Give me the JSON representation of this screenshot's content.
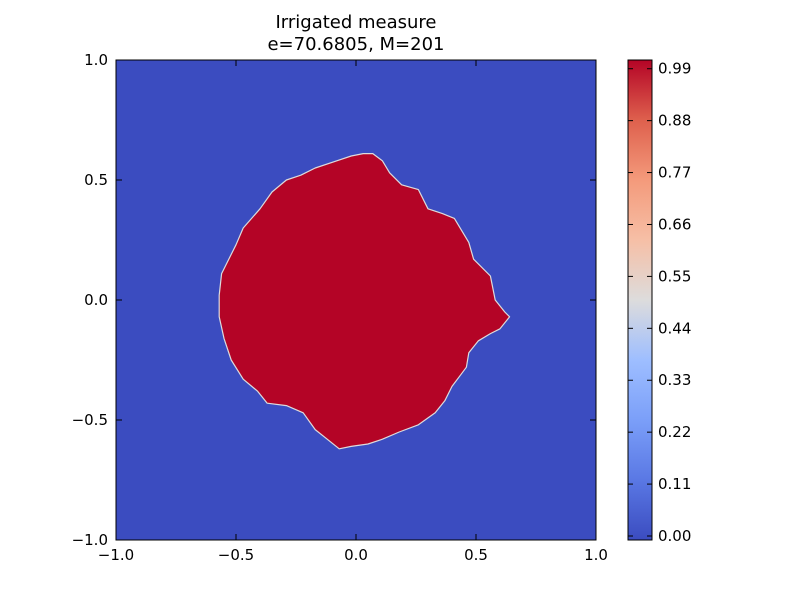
{
  "chart_data": {
    "type": "heatmap",
    "title": "Irrigated measure",
    "subtitle": "e=70.6805, M=201",
    "xlabel": "",
    "ylabel": "",
    "xlim": [
      -1.0,
      1.0
    ],
    "ylim": [
      -1.0,
      1.0
    ],
    "xticks": [
      "−1.0",
      "−0.5",
      "0.0",
      "0.5",
      "1.0"
    ],
    "yticks": [
      "1.0",
      "0.5",
      "0.0",
      "−0.5",
      "−1.0"
    ],
    "colorbar": {
      "ticks": [
        "0.99",
        "0.88",
        "0.77",
        "0.66",
        "0.55",
        "0.44",
        "0.33",
        "0.22",
        "0.11",
        "0.00"
      ],
      "tick_values": [
        0.99,
        0.88,
        0.77,
        0.66,
        0.55,
        0.44,
        0.33,
        0.22,
        0.11,
        0.0
      ],
      "range": [
        0.0,
        1.0
      ],
      "colormap": "coolwarm",
      "low_color": "#3b4cc0",
      "high_color": "#b40426"
    },
    "background_value": 0.0,
    "region": {
      "description_value": 1.0,
      "boundary": [
        [
          0.07,
          0.61
        ],
        [
          0.11,
          0.58
        ],
        [
          0.14,
          0.53
        ],
        [
          0.19,
          0.48
        ],
        [
          0.26,
          0.46
        ],
        [
          0.3,
          0.38
        ],
        [
          0.36,
          0.36
        ],
        [
          0.41,
          0.34
        ],
        [
          0.44,
          0.29
        ],
        [
          0.47,
          0.24
        ],
        [
          0.49,
          0.17
        ],
        [
          0.56,
          0.1
        ],
        [
          0.58,
          0.0
        ],
        [
          0.62,
          -0.05
        ],
        [
          0.64,
          -0.07
        ],
        [
          0.6,
          -0.12
        ],
        [
          0.56,
          -0.14
        ],
        [
          0.51,
          -0.17
        ],
        [
          0.47,
          -0.22
        ],
        [
          0.46,
          -0.28
        ],
        [
          0.43,
          -0.32
        ],
        [
          0.4,
          -0.36
        ],
        [
          0.37,
          -0.42
        ],
        [
          0.33,
          -0.47
        ],
        [
          0.26,
          -0.52
        ],
        [
          0.18,
          -0.55
        ],
        [
          0.11,
          -0.58
        ],
        [
          0.05,
          -0.6
        ],
        [
          -0.02,
          -0.61
        ],
        [
          -0.07,
          -0.62
        ],
        [
          -0.12,
          -0.58
        ],
        [
          -0.17,
          -0.54
        ],
        [
          -0.22,
          -0.47
        ],
        [
          -0.29,
          -0.44
        ],
        [
          -0.37,
          -0.43
        ],
        [
          -0.41,
          -0.38
        ],
        [
          -0.47,
          -0.33
        ],
        [
          -0.52,
          -0.25
        ],
        [
          -0.55,
          -0.16
        ],
        [
          -0.57,
          -0.07
        ],
        [
          -0.57,
          0.02
        ],
        [
          -0.56,
          0.11
        ],
        [
          -0.52,
          0.19
        ],
        [
          -0.5,
          0.23
        ],
        [
          -0.47,
          0.3
        ],
        [
          -0.4,
          0.38
        ],
        [
          -0.35,
          0.45
        ],
        [
          -0.29,
          0.5
        ],
        [
          -0.23,
          0.52
        ],
        [
          -0.17,
          0.55
        ],
        [
          -0.08,
          0.58
        ],
        [
          -0.02,
          0.6
        ],
        [
          0.03,
          0.61
        ]
      ]
    }
  }
}
